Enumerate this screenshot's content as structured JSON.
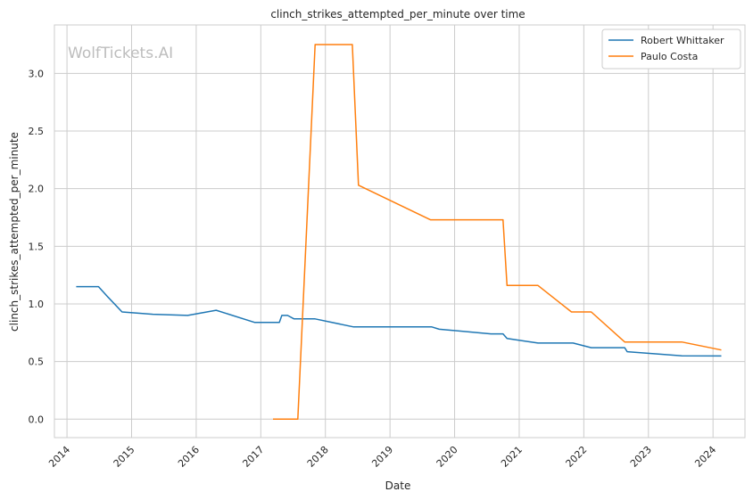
{
  "chart_data": {
    "type": "line",
    "title": "clinch_strikes_attempted_per_minute over time",
    "xlabel": "Date",
    "ylabel": "clinch_strikes_attempted_per_minute",
    "watermark": "WolfTickets.AI",
    "grid": true,
    "legend_position": "top-right",
    "x_ticks": [
      "2014",
      "2015",
      "2016",
      "2017",
      "2018",
      "2019",
      "2020",
      "2021",
      "2022",
      "2023",
      "2024"
    ],
    "y_ticks": [
      "0.0",
      "0.5",
      "1.0",
      "1.5",
      "2.0",
      "2.5",
      "3.0"
    ],
    "xlim": [
      "2013-10-22",
      "2024-06-30"
    ],
    "ylim": [
      -0.16,
      3.42
    ],
    "series": [
      {
        "name": "Robert Whittaker",
        "color": "#1f77b4",
        "points": [
          [
            "2014-02-22",
            1.15
          ],
          [
            "2014-06-28",
            1.15
          ],
          [
            "2014-08-20",
            1.06
          ],
          [
            "2014-11-08",
            0.93
          ],
          [
            "2015-05-01",
            0.91
          ],
          [
            "2015-11-14",
            0.9
          ],
          [
            "2016-04-23",
            0.945
          ],
          [
            "2016-11-26",
            0.84
          ],
          [
            "2017-04-16",
            0.84
          ],
          [
            "2017-04-30",
            0.9
          ],
          [
            "2017-06-01",
            0.9
          ],
          [
            "2017-07-08",
            0.87
          ],
          [
            "2017-11-04",
            0.87
          ],
          [
            "2018-06-09",
            0.8
          ],
          [
            "2019-08-01",
            0.8
          ],
          [
            "2019-08-25",
            0.8
          ],
          [
            "2019-10-06",
            0.78
          ],
          [
            "2020-07-25",
            0.74
          ],
          [
            "2020-10-01",
            0.74
          ],
          [
            "2020-10-24",
            0.7
          ],
          [
            "2021-04-17",
            0.66
          ],
          [
            "2021-11-01",
            0.66
          ],
          [
            "2022-02-12",
            0.62
          ],
          [
            "2022-08-20",
            0.62
          ],
          [
            "2022-09-03",
            0.585
          ],
          [
            "2023-07-08",
            0.55
          ],
          [
            "2024-02-17",
            0.548
          ]
        ]
      },
      {
        "name": "Paulo Costa",
        "color": "#ff7f0e",
        "points": [
          [
            "2017-03-11",
            0.0
          ],
          [
            "2017-07-29",
            0.0
          ],
          [
            "2017-11-04",
            3.25
          ],
          [
            "2018-06-02",
            3.25
          ],
          [
            "2018-07-07",
            2.03
          ],
          [
            "2019-08-17",
            1.73
          ],
          [
            "2020-08-01",
            1.73
          ],
          [
            "2020-10-01",
            1.73
          ],
          [
            "2020-10-24",
            1.16
          ],
          [
            "2021-04-17",
            1.16
          ],
          [
            "2021-10-23",
            0.93
          ],
          [
            "2022-02-12",
            0.93
          ],
          [
            "2022-08-20",
            0.67
          ],
          [
            "2023-07-08",
            0.67
          ],
          [
            "2024-02-17",
            0.6
          ]
        ]
      }
    ]
  }
}
